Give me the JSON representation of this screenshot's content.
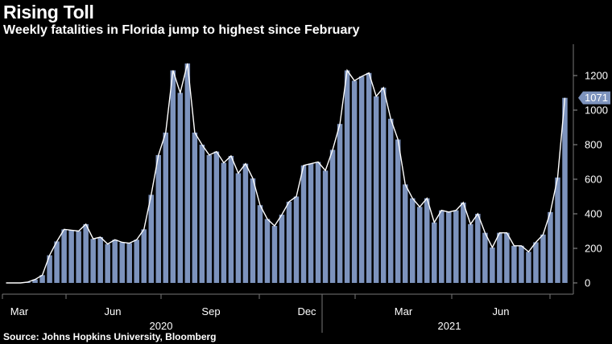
{
  "header": {
    "title": "Rising Toll",
    "subtitle": "Weekly fatalities in Florida jump to highest since February"
  },
  "footer": {
    "source": "Source: Johns Hopkins University, Bloomberg"
  },
  "colors": {
    "background": "#000000",
    "bar": "#7d93bd",
    "line": "#ffffff",
    "axis_text": "#ffffff",
    "gridline": "#555555",
    "callout": "#7d93bd"
  },
  "chart_data": {
    "type": "bar",
    "title": "Rising Toll",
    "subtitle": "Weekly fatalities in Florida jump to highest since February",
    "xlabel": "",
    "ylabel": "",
    "ylim": [
      0,
      1300
    ],
    "y_ticks": [
      0,
      200,
      400,
      600,
      800,
      1000,
      1200
    ],
    "y_axis_side": "right",
    "grid": false,
    "x_tick_labels": [
      "Mar",
      "Jun",
      "Sep",
      "Dec",
      "Mar",
      "Jun"
    ],
    "x_year_labels": [
      "2020",
      "2021"
    ],
    "callout_value": "1071",
    "series": [
      {
        "values": [
          0,
          0,
          0,
          5,
          20,
          45,
          160,
          240,
          310,
          305,
          300,
          340,
          255,
          265,
          225,
          250,
          235,
          230,
          250,
          310,
          510,
          740,
          870,
          1230,
          1100,
          1270,
          870,
          800,
          740,
          760,
          695,
          735,
          635,
          690,
          605,
          450,
          370,
          330,
          395,
          470,
          500,
          680,
          690,
          700,
          650,
          770,
          920,
          1230,
          1170,
          1195,
          1215,
          1080,
          1130,
          950,
          830,
          570,
          490,
          440,
          490,
          350,
          420,
          410,
          420,
          465,
          340,
          400,
          290,
          205,
          290,
          290,
          215,
          215,
          180,
          235,
          280,
          410,
          610,
          1071
        ]
      }
    ]
  }
}
